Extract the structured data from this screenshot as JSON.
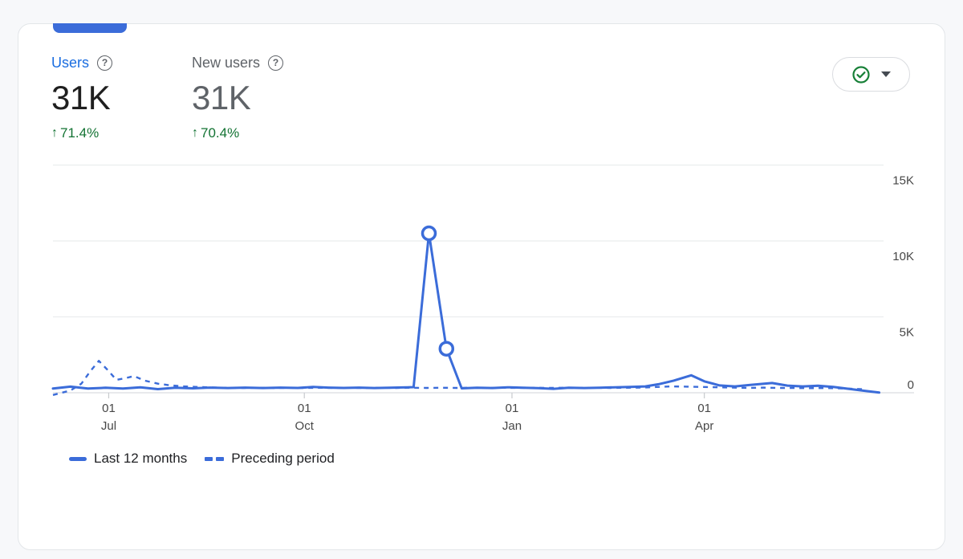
{
  "colors": {
    "page_bg": "#f7f8fa",
    "card_bg": "#ffffff",
    "card_border": "#e3e6e9",
    "accent_blue": "#3b6cd9",
    "selected_label_blue": "#1a6de0",
    "text_dark": "#1f1f1f",
    "text_gray": "#5f6368",
    "delta_green": "#137333",
    "check_green": "#188038",
    "gridline": "#ebedee",
    "axis_line": "#dadce0",
    "axis_text": "#474747"
  },
  "header": {
    "delta_arrow": "↑",
    "help_glyph": "?",
    "metrics": [
      {
        "label": "Users",
        "value": "31K",
        "delta": "71.4%",
        "direction": "up",
        "selected": true
      },
      {
        "label": "New users",
        "value": "31K",
        "delta": "70.4%",
        "direction": "up",
        "selected": false
      }
    ],
    "status_button": {
      "icons": [
        "check-circle-icon",
        "caret-down-icon"
      ]
    }
  },
  "chart_data": {
    "type": "line",
    "unit": "users",
    "legend_position": "bottom",
    "y_axis": {
      "min": 0,
      "max": 16000,
      "ticks": [
        {
          "v": 15000,
          "label": "15K"
        },
        {
          "v": 10000,
          "label": "10K"
        },
        {
          "v": 5000,
          "label": "5K"
        },
        {
          "v": 0,
          "label": "0"
        }
      ]
    },
    "x_axis": {
      "span_days": 380,
      "ticks": [
        {
          "t": 25.5,
          "label": [
            "01",
            "Jul"
          ]
        },
        {
          "t": 115,
          "label": [
            "01",
            "Oct"
          ]
        },
        {
          "t": 210,
          "label": [
            "01",
            "Jan"
          ]
        },
        {
          "t": 298,
          "label": [
            "01",
            "Apr"
          ]
        }
      ]
    },
    "series": [
      {
        "name": "Last 12 months",
        "style": "solid",
        "points": [
          [
            0,
            280
          ],
          [
            8,
            400
          ],
          [
            16,
            280
          ],
          [
            24,
            330
          ],
          [
            32,
            280
          ],
          [
            40,
            360
          ],
          [
            48,
            240
          ],
          [
            56,
            330
          ],
          [
            64,
            290
          ],
          [
            72,
            340
          ],
          [
            80,
            310
          ],
          [
            88,
            340
          ],
          [
            96,
            310
          ],
          [
            104,
            340
          ],
          [
            112,
            320
          ],
          [
            119,
            380
          ],
          [
            126,
            340
          ],
          [
            133,
            320
          ],
          [
            140,
            340
          ],
          [
            147,
            310
          ],
          [
            154,
            330
          ],
          [
            160,
            350
          ],
          [
            165,
            370
          ],
          [
            172,
            10500
          ],
          [
            180,
            2900
          ],
          [
            187,
            290
          ],
          [
            194,
            330
          ],
          [
            201,
            310
          ],
          [
            208,
            360
          ],
          [
            215,
            330
          ],
          [
            222,
            300
          ],
          [
            229,
            260
          ],
          [
            236,
            330
          ],
          [
            243,
            310
          ],
          [
            250,
            330
          ],
          [
            257,
            360
          ],
          [
            264,
            380
          ],
          [
            271,
            420
          ],
          [
            277,
            560
          ],
          [
            284,
            800
          ],
          [
            292,
            1150
          ],
          [
            298,
            750
          ],
          [
            305,
            480
          ],
          [
            312,
            420
          ],
          [
            319,
            520
          ],
          [
            329,
            640
          ],
          [
            336,
            470
          ],
          [
            343,
            420
          ],
          [
            350,
            460
          ],
          [
            357,
            380
          ],
          [
            364,
            260
          ],
          [
            371,
            130
          ],
          [
            378,
            10
          ]
        ]
      },
      {
        "name": "Preceding period",
        "style": "dashed",
        "points": [
          [
            0,
            -150
          ],
          [
            8,
            150
          ],
          [
            13,
            600
          ],
          [
            17,
            1400
          ],
          [
            21,
            2100
          ],
          [
            25,
            1500
          ],
          [
            29,
            850
          ],
          [
            33,
            950
          ],
          [
            37,
            1100
          ],
          [
            42,
            800
          ],
          [
            48,
            600
          ],
          [
            54,
            480
          ],
          [
            60,
            420
          ],
          [
            66,
            380
          ],
          [
            73,
            350
          ],
          [
            80,
            330
          ],
          [
            87,
            320
          ],
          [
            94,
            330
          ],
          [
            101,
            320
          ],
          [
            108,
            330
          ],
          [
            115,
            320
          ],
          [
            122,
            330
          ],
          [
            129,
            320
          ],
          [
            136,
            330
          ],
          [
            143,
            320
          ],
          [
            150,
            330
          ],
          [
            157,
            320
          ],
          [
            164,
            330
          ],
          [
            171,
            320
          ],
          [
            178,
            330
          ],
          [
            185,
            320
          ],
          [
            192,
            330
          ],
          [
            199,
            320
          ],
          [
            206,
            330
          ],
          [
            213,
            320
          ],
          [
            220,
            330
          ],
          [
            227,
            320
          ],
          [
            234,
            330
          ],
          [
            241,
            320
          ],
          [
            248,
            330
          ],
          [
            255,
            320
          ],
          [
            262,
            330
          ],
          [
            269,
            340
          ],
          [
            276,
            380
          ],
          [
            283,
            420
          ],
          [
            290,
            400
          ],
          [
            297,
            380
          ],
          [
            304,
            360
          ],
          [
            311,
            340
          ],
          [
            318,
            320
          ],
          [
            325,
            340
          ],
          [
            332,
            320
          ],
          [
            339,
            310
          ],
          [
            346,
            300
          ],
          [
            353,
            310
          ],
          [
            360,
            290
          ],
          [
            366,
            260
          ],
          [
            372,
            220
          ]
        ]
      }
    ],
    "markers": [
      [
        172,
        10500
      ],
      [
        180,
        2900
      ]
    ]
  }
}
